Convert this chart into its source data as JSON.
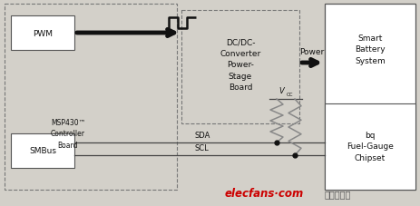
{
  "bg_color": "#d3d0c9",
  "box_fill_gray": "#d3d0c9",
  "box_fill_white": "#ffffff",
  "edge_solid": "#555555",
  "edge_dashed": "#777777",
  "arrow_color": "#111111",
  "line_color": "#444444",
  "text_color": "#111111",
  "red_color": "#cc0000",
  "gray_text": "#666666",
  "pwm_label": "PWM",
  "dc_label": "DC/DC-\nConverter\nPower-\nStage\nBoard",
  "smart_label": "Smart\nBattery\nSystem",
  "bq_label": "bq\nFuel-Gauge\nChipset",
  "smbus_label": "SMBus",
  "msp_label": "MSP430™\nController\nBoard",
  "power_label": "Power",
  "sda_label": "SDA",
  "scl_label": "SCL",
  "vcc_label": "V",
  "vcc_sub": "CC",
  "watermark": "elecfans·com",
  "watermark2": "电子发烧友"
}
